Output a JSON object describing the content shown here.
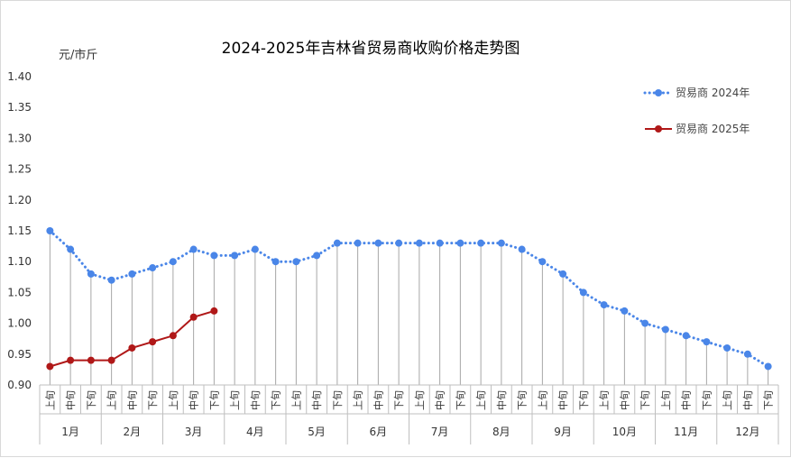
{
  "chart_data": {
    "type": "line",
    "title": "2024-2025年吉林省贸易商收购价格走势图",
    "ylabel": "元/市斤",
    "ylim": [
      0.9,
      1.4
    ],
    "yticks": [
      "0.90",
      "0.95",
      "1.00",
      "1.05",
      "1.10",
      "1.15",
      "1.20",
      "1.25",
      "1.30",
      "1.35",
      "1.40"
    ],
    "ten_day_labels": [
      "上旬",
      "中旬",
      "下旬"
    ],
    "months": [
      "1月",
      "2月",
      "3月",
      "4月",
      "5月",
      "6月",
      "7月",
      "8月",
      "9月",
      "10月",
      "11月",
      "12月"
    ],
    "legend_position": "top-right",
    "grid": false,
    "series": [
      {
        "name": "贸易商 2024年",
        "color": "#4a86e8",
        "style": "dotted",
        "values": [
          1.15,
          1.12,
          1.08,
          1.07,
          1.08,
          1.09,
          1.1,
          1.12,
          1.11,
          1.11,
          1.12,
          1.1,
          1.1,
          1.11,
          1.13,
          1.13,
          1.13,
          1.13,
          1.13,
          1.13,
          1.13,
          1.13,
          1.13,
          1.12,
          1.1,
          1.08,
          1.05,
          1.03,
          1.02,
          1.0,
          0.99,
          0.98,
          0.97,
          0.96,
          0.95,
          0.93
        ]
      },
      {
        "name": "贸易商 2025年",
        "color": "#b01818",
        "style": "solid",
        "values": [
          0.93,
          0.94,
          0.94,
          0.94,
          0.96,
          0.97,
          0.98,
          1.01,
          1.02
        ]
      }
    ]
  }
}
